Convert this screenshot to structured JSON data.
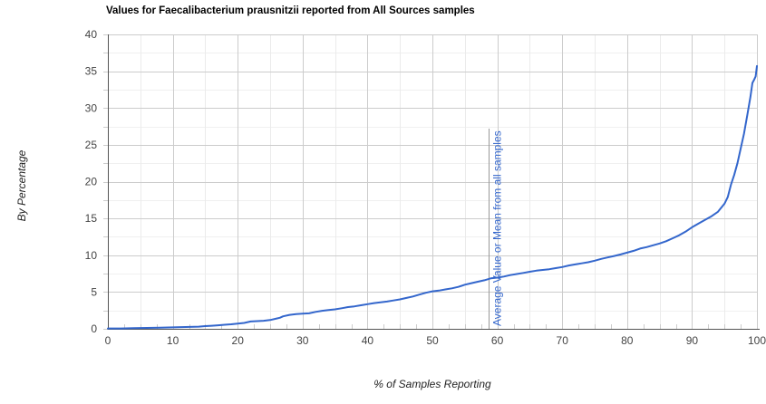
{
  "chart_data": {
    "type": "line",
    "title": "Values for Faecalibacterium prausnitzii reported from All Sources samples",
    "xlabel": "% of Samples Reporting",
    "ylabel": "By Percentage",
    "xlim": [
      0,
      100
    ],
    "ylim": [
      0,
      40
    ],
    "x_ticks": [
      0,
      10,
      20,
      30,
      40,
      50,
      60,
      70,
      80,
      90,
      100
    ],
    "y_ticks": [
      0,
      5,
      10,
      15,
      20,
      25,
      30,
      35,
      40
    ],
    "x_minor_step": 5,
    "y_minor_step": 2.5,
    "axis_tick_step": 2.5,
    "grid": true,
    "legend_position": "none",
    "series": [
      {
        "name": "Faecalibacterium prausnitzii",
        "color": "#3366cc",
        "points": [
          [
            0,
            0.05
          ],
          [
            2,
            0.05
          ],
          [
            4,
            0.1
          ],
          [
            6,
            0.12
          ],
          [
            8,
            0.15
          ],
          [
            10,
            0.2
          ],
          [
            12,
            0.25
          ],
          [
            14,
            0.3
          ],
          [
            15,
            0.37
          ],
          [
            16,
            0.42
          ],
          [
            17,
            0.48
          ],
          [
            18,
            0.55
          ],
          [
            19,
            0.62
          ],
          [
            20,
            0.7
          ],
          [
            21,
            0.8
          ],
          [
            22,
            1.0
          ],
          [
            23,
            1.05
          ],
          [
            24,
            1.1
          ],
          [
            25,
            1.2
          ],
          [
            26,
            1.4
          ],
          [
            26.5,
            1.5
          ],
          [
            27,
            1.7
          ],
          [
            28,
            1.9
          ],
          [
            29,
            2.0
          ],
          [
            30,
            2.05
          ],
          [
            31,
            2.1
          ],
          [
            32,
            2.3
          ],
          [
            33,
            2.45
          ],
          [
            34,
            2.55
          ],
          [
            35,
            2.65
          ],
          [
            36,
            2.8
          ],
          [
            37,
            2.95
          ],
          [
            38,
            3.05
          ],
          [
            39,
            3.2
          ],
          [
            40,
            3.35
          ],
          [
            41,
            3.5
          ],
          [
            42,
            3.6
          ],
          [
            43,
            3.7
          ],
          [
            44,
            3.85
          ],
          [
            45,
            4.0
          ],
          [
            46,
            4.2
          ],
          [
            47,
            4.4
          ],
          [
            48,
            4.65
          ],
          [
            49,
            4.9
          ],
          [
            50,
            5.1
          ],
          [
            51,
            5.2
          ],
          [
            52,
            5.35
          ],
          [
            53,
            5.5
          ],
          [
            54,
            5.7
          ],
          [
            55,
            6.0
          ],
          [
            56,
            6.2
          ],
          [
            57,
            6.4
          ],
          [
            58,
            6.6
          ],
          [
            59,
            6.85
          ],
          [
            60,
            6.95
          ],
          [
            61,
            7.1
          ],
          [
            62,
            7.3
          ],
          [
            63,
            7.45
          ],
          [
            64,
            7.6
          ],
          [
            65,
            7.75
          ],
          [
            66,
            7.9
          ],
          [
            67,
            8.0
          ],
          [
            68,
            8.1
          ],
          [
            69,
            8.25
          ],
          [
            70,
            8.4
          ],
          [
            71,
            8.6
          ],
          [
            72,
            8.75
          ],
          [
            73,
            8.9
          ],
          [
            74,
            9.05
          ],
          [
            75,
            9.25
          ],
          [
            76,
            9.5
          ],
          [
            77,
            9.7
          ],
          [
            78,
            9.9
          ],
          [
            79,
            10.1
          ],
          [
            80,
            10.35
          ],
          [
            81,
            10.6
          ],
          [
            82,
            10.9
          ],
          [
            83,
            11.1
          ],
          [
            84,
            11.35
          ],
          [
            85,
            11.6
          ],
          [
            86,
            11.9
          ],
          [
            87,
            12.3
          ],
          [
            88,
            12.7
          ],
          [
            89,
            13.2
          ],
          [
            90,
            13.8
          ],
          [
            91,
            14.3
          ],
          [
            92,
            14.8
          ],
          [
            93,
            15.3
          ],
          [
            94,
            15.9
          ],
          [
            95,
            17.0
          ],
          [
            95.5,
            17.9
          ],
          [
            96,
            19.6
          ],
          [
            96.5,
            20.9
          ],
          [
            97,
            22.5
          ],
          [
            97.5,
            24.5
          ],
          [
            98,
            26.5
          ],
          [
            98.5,
            29.0
          ],
          [
            99,
            31.5
          ],
          [
            99.3,
            33.4
          ],
          [
            99.6,
            33.9
          ],
          [
            99.8,
            34.3
          ],
          [
            100,
            35.7
          ]
        ]
      }
    ],
    "annotation": {
      "label": "Average Value or Mean from all samples",
      "x": 58.7,
      "line_top_value": 27.2
    }
  },
  "colors": {
    "line": "#3366cc",
    "grid_major": "#cccccc",
    "grid_minor_v": "#ebebeb",
    "grid_minor_h": "#f0f0f0",
    "axis_line": "#555555",
    "tick_mark": "#cccccc",
    "tick_text": "#444444",
    "annotation_line": "#999999",
    "annotation_text": "#3366cc",
    "background": "#ffffff"
  }
}
